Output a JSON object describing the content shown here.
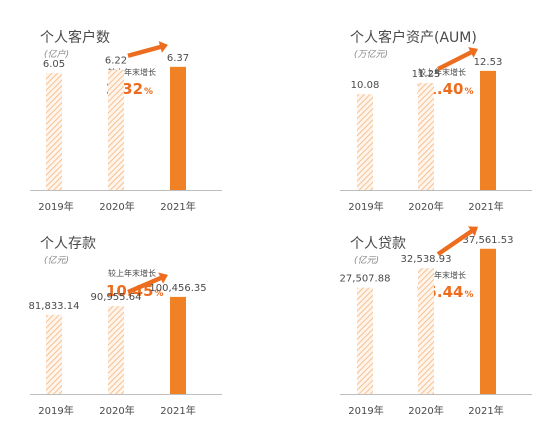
{
  "colors": {
    "accent": "#f08124",
    "hatch": "#f4b47a",
    "hatch_bg": "#fff5ec",
    "growth_text": "#ec6d1f",
    "axis": "#bdbdbd"
  },
  "chart_data": [
    {
      "type": "bar",
      "title": "个人客户数",
      "unit": "(亿户)",
      "categories": [
        "2019年",
        "2020年",
        "2021年"
      ],
      "values": [
        6.05,
        6.22,
        6.37
      ],
      "value_labels": [
        "6.05",
        "6.22",
        "6.37"
      ],
      "growth": {
        "caption": "较上年末增长",
        "value": "2.32",
        "unit": "%"
      },
      "highlight": "2021年",
      "ylim": [
        0,
        9.0
      ]
    },
    {
      "type": "bar",
      "title": "个人客户资产(AUM)",
      "unit": "(万亿元)",
      "categories": [
        "2019年",
        "2020年",
        "2021年"
      ],
      "values": [
        10.08,
        11.25,
        12.53
      ],
      "value_labels": [
        "10.08",
        "11.25",
        "12.53"
      ],
      "growth": {
        "caption": "较上年末增长",
        "value": "11.40",
        "unit": "%"
      },
      "highlight": "2021年",
      "ylim": [
        0,
        18.3
      ]
    },
    {
      "type": "bar",
      "title": "个人存款",
      "unit": "(亿元)",
      "categories": [
        "2019年",
        "2020年",
        "2021年"
      ],
      "values": [
        81833.14,
        90955.64,
        100456.35
      ],
      "value_labels": [
        "81,833.14",
        "90,955.64",
        "100,456.35"
      ],
      "growth": {
        "caption": "较上年末增长",
        "value": "10.45",
        "unit": "%"
      },
      "highlight": "2021年",
      "ylim": [
        0,
        180000
      ]
    },
    {
      "type": "bar",
      "title": "个人贷款",
      "unit": "(亿元)",
      "categories": [
        "2019年",
        "2020年",
        "2021年"
      ],
      "values": [
        27507.88,
        32538.93,
        37561.53
      ],
      "value_labels": [
        "27,507.88",
        "32,538.93",
        "37,561.53"
      ],
      "growth": {
        "caption": "较上年末增长",
        "value": "15.44",
        "unit": "%"
      },
      "highlight": "2021年",
      "ylim": [
        0,
        45000
      ]
    }
  ]
}
